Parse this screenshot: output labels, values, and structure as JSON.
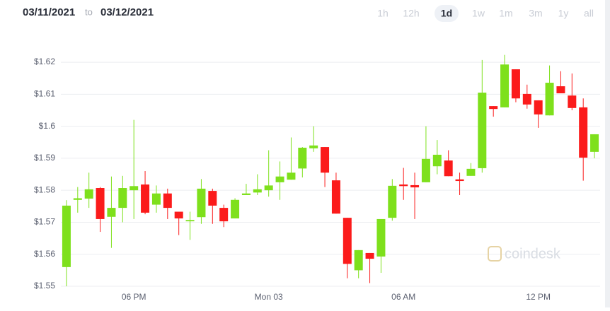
{
  "header": {
    "start_date": "03/11/2021",
    "to": "to",
    "end_date": "03/12/2021",
    "ranges": [
      "1h",
      "12h",
      "1d",
      "1w",
      "1m",
      "3m",
      "1y",
      "all"
    ],
    "selected": 2
  },
  "chart_data": {
    "type": "candlestick",
    "watermark": "coindesk",
    "categories": [
      null,
      null,
      null,
      null,
      null,
      null,
      "06 PM",
      null,
      null,
      null,
      null,
      null,
      null,
      null,
      null,
      null,
      null,
      null,
      "Mon 03",
      null,
      null,
      null,
      null,
      null,
      null,
      null,
      null,
      null,
      null,
      null,
      "06 AM",
      null,
      null,
      null,
      null,
      null,
      null,
      null,
      null,
      null,
      null,
      null,
      "12 PM",
      null,
      null,
      null,
      null,
      null
    ],
    "open": [
      1.556,
      1.577,
      1.5774,
      1.5807,
      1.5717,
      1.5745,
      1.58,
      1.5818,
      1.5755,
      1.579,
      1.5733,
      1.5703,
      1.5716,
      1.5798,
      1.5745,
      1.5712,
      1.5785,
      1.5793,
      1.58,
      1.5825,
      1.5833,
      1.5868,
      1.5931,
      1.5935,
      1.5831,
      1.5714,
      1.555,
      1.5604,
      1.5593,
      1.5714,
      1.5818,
      1.5816,
      1.5825,
      1.5875,
      1.5893,
      1.5834,
      1.5845,
      1.5869,
      1.6063,
      1.6059,
      1.6178,
      1.6101,
      1.6081,
      1.6034,
      1.6125,
      1.6096,
      1.6059,
      1.592
    ],
    "high": [
      1.5769,
      1.581,
      1.5855,
      1.581,
      1.5843,
      1.5845,
      1.602,
      1.586,
      1.5815,
      1.5805,
      1.5733,
      1.5733,
      1.5835,
      1.5805,
      1.5755,
      1.5775,
      1.582,
      1.585,
      1.5925,
      1.589,
      1.5965,
      1.5935,
      1.6,
      1.5935,
      1.5855,
      1.5714,
      1.5613,
      1.5604,
      1.571,
      1.5835,
      1.587,
      1.5855,
      1.6,
      1.5957,
      1.5925,
      1.5855,
      1.5885,
      1.6207,
      1.6063,
      1.6223,
      1.6178,
      1.613,
      1.6081,
      1.619,
      1.6172,
      1.6165,
      1.6087,
      1.5975
    ],
    "low": [
      1.55,
      1.573,
      1.5745,
      1.567,
      1.562,
      1.57,
      1.571,
      1.5725,
      1.573,
      1.571,
      1.566,
      1.5645,
      1.5695,
      1.5695,
      1.5685,
      1.5712,
      1.5785,
      1.5785,
      1.578,
      1.577,
      1.5833,
      1.584,
      1.592,
      1.581,
      1.5727,
      1.5525,
      1.5525,
      1.551,
      1.5542,
      1.5705,
      1.577,
      1.571,
      1.5825,
      1.585,
      1.5844,
      1.5785,
      1.5845,
      1.5855,
      1.603,
      1.6059,
      1.6075,
      1.6055,
      1.5995,
      1.6034,
      1.6103,
      1.605,
      1.583,
      1.59
    ],
    "close": [
      1.5752,
      1.5775,
      1.5803,
      1.571,
      1.5745,
      1.5807,
      1.5813,
      1.573,
      1.579,
      1.5745,
      1.5712,
      1.5707,
      1.5805,
      1.5752,
      1.5703,
      1.577,
      1.579,
      1.5803,
      1.5815,
      1.5843,
      1.5855,
      1.5933,
      1.594,
      1.5855,
      1.5727,
      1.557,
      1.5613,
      1.5586,
      1.571,
      1.5814,
      1.5813,
      1.5809,
      1.5898,
      1.5911,
      1.5844,
      1.5829,
      1.5867,
      1.6105,
      1.6054,
      1.6193,
      1.6087,
      1.6068,
      1.6037,
      1.6136,
      1.6103,
      1.6057,
      1.5902,
      1.5975
    ],
    "up_color": "#7ee01c",
    "down_color": "#fb1b1b",
    "ylim": [
      1.5489,
      1.6262
    ],
    "yticks": [
      {
        "value": 1.55,
        "label": "$1.55"
      },
      {
        "value": 1.56,
        "label": "$1.56"
      },
      {
        "value": 1.57,
        "label": "$1.57"
      },
      {
        "value": 1.58,
        "label": "$1.58"
      },
      {
        "value": 1.59,
        "label": "$1.59"
      },
      {
        "value": 1.6,
        "label": "$1.6"
      },
      {
        "value": 1.61,
        "label": "$1.61"
      },
      {
        "value": 1.62,
        "label": "$1.62"
      }
    ],
    "grid": true
  }
}
